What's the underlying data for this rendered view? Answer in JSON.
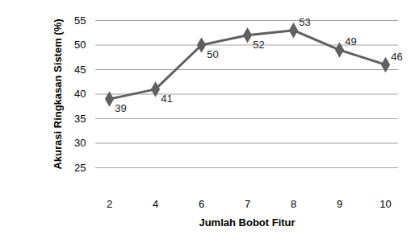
{
  "chart_data": {
    "type": "line",
    "x_label": "Jumlah Bobot Fitur",
    "y_label": "Akurasi Ringkasan Sistem (%)",
    "categories": [
      "2",
      "4",
      "6",
      "7",
      "8",
      "9",
      "10"
    ],
    "values": [
      39,
      41,
      50,
      52,
      53,
      49,
      46
    ],
    "color": "#606060",
    "marker": "diamond",
    "ylim": [
      25,
      55
    ],
    "yticks": [
      25,
      30,
      35,
      40,
      45,
      50,
      55
    ],
    "grid": true,
    "data_labels": true
  }
}
